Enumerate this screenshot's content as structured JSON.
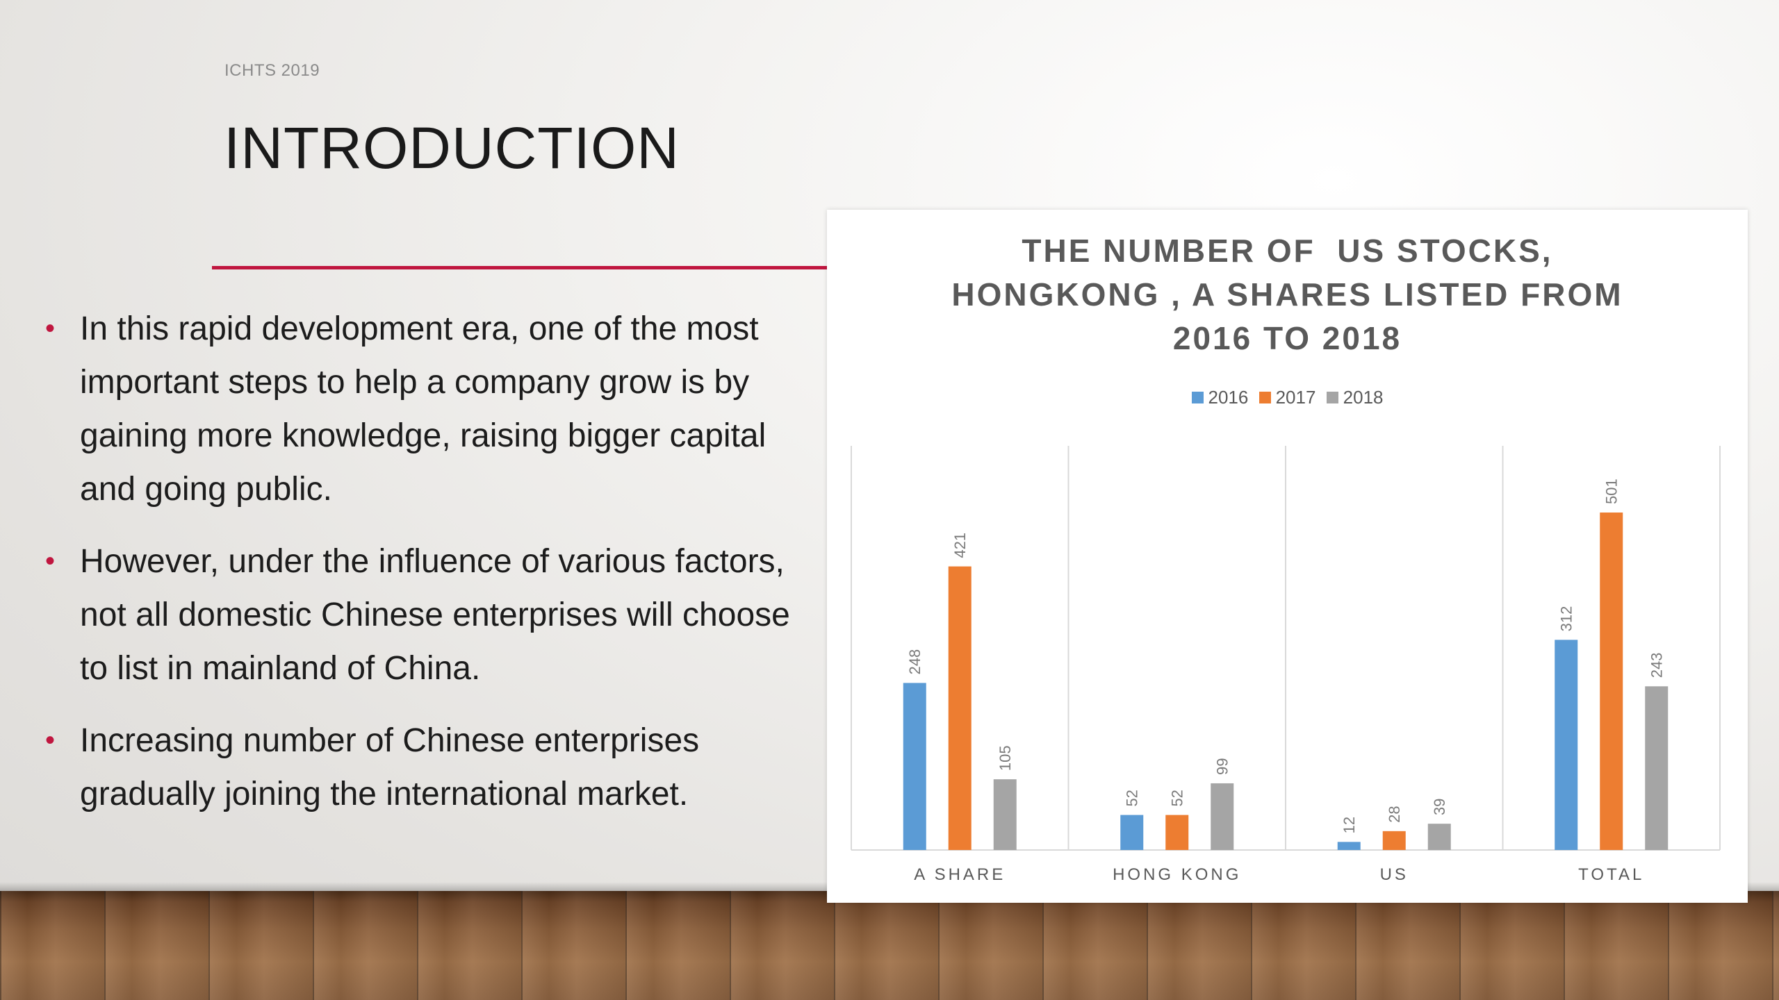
{
  "slide": {
    "conference": "ICHTS 2019",
    "title": "INTRODUCTION",
    "accent_color": "#c0163f",
    "bullets": [
      "In this rapid development era, one of the most important steps to help a company grow is by gaining more knowledge, raising bigger capital and going public.",
      "However, under the influence of various factors, not all domestic Chinese enterprises will choose to list in mainland of China.",
      "Increasing number of Chinese enterprises gradually joining the international market."
    ],
    "bullet_symbol": "•"
  },
  "chart_data": {
    "type": "bar",
    "title_lines": [
      "THE NUMBER OF  US STOCKS,",
      "HONGKONG , A SHARES LISTED FROM",
      "2016 TO 2018"
    ],
    "categories": [
      "A SHARE",
      "HONG KONG",
      "US",
      "TOTAL"
    ],
    "series": [
      {
        "name": "2016",
        "color": "#5b9bd5",
        "values": [
          248,
          52,
          12,
          312
        ]
      },
      {
        "name": "2017",
        "color": "#ed7d31",
        "values": [
          421,
          52,
          28,
          501
        ]
      },
      {
        "name": "2018",
        "color": "#a5a5a5",
        "values": [
          105,
          99,
          39,
          243
        ]
      }
    ],
    "ylim": [
      0,
      600
    ],
    "legend_position": "top",
    "data_labels": true,
    "data_label_orientation": "vertical"
  }
}
